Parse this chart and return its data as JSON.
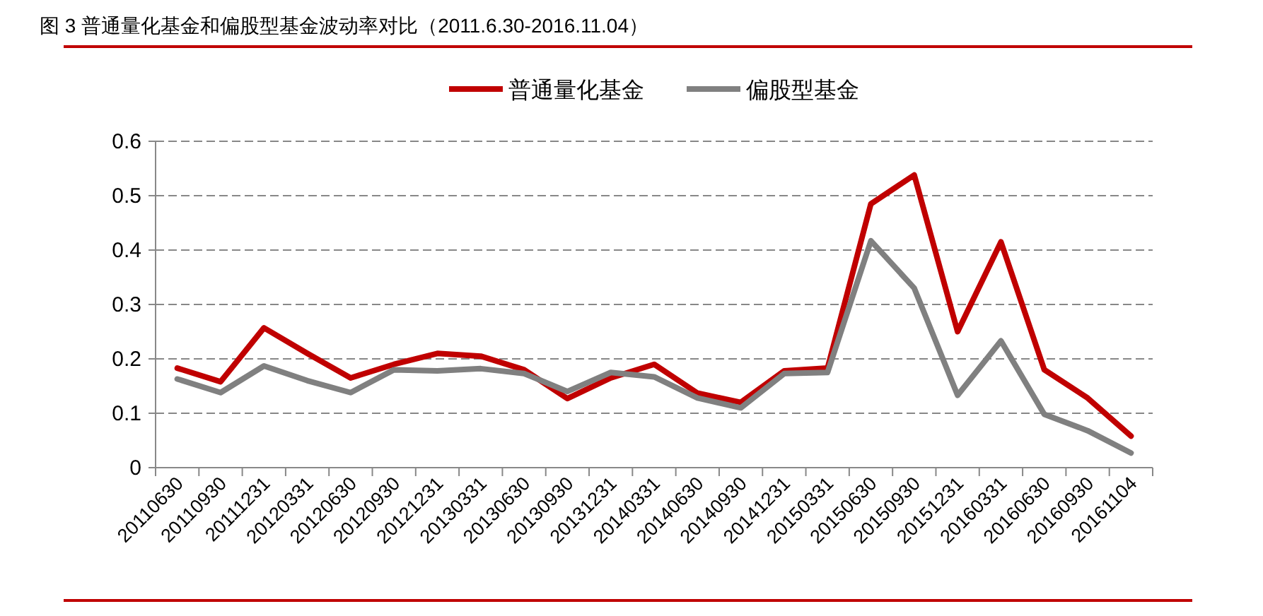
{
  "chart_data": {
    "type": "line",
    "title": "图 3 普通量化基金和偏股型基金波动率对比（2011.6.30-2016.11.04）",
    "categories": [
      "20110630",
      "20110930",
      "20111231",
      "20120331",
      "20120630",
      "20120930",
      "20121231",
      "20130331",
      "20130630",
      "20130930",
      "20131231",
      "20140331",
      "20140630",
      "20140930",
      "20141231",
      "20150331",
      "20150630",
      "20150930",
      "20151231",
      "20160331",
      "20160630",
      "20160930",
      "20161104"
    ],
    "series": [
      {
        "name": "普通量化基金",
        "color": "#c00000",
        "values": [
          0.183,
          0.158,
          0.257,
          0.21,
          0.165,
          0.19,
          0.21,
          0.205,
          0.18,
          0.127,
          0.165,
          0.19,
          0.137,
          0.12,
          0.178,
          0.183,
          0.485,
          0.538,
          0.25,
          0.415,
          0.18,
          0.128,
          0.058
        ]
      },
      {
        "name": "偏股型基金",
        "color": "#808080",
        "values": [
          0.163,
          0.138,
          0.187,
          0.16,
          0.138,
          0.18,
          0.178,
          0.182,
          0.173,
          0.14,
          0.175,
          0.167,
          0.128,
          0.11,
          0.173,
          0.175,
          0.417,
          0.33,
          0.133,
          0.233,
          0.098,
          0.068,
          0.027
        ]
      }
    ],
    "ylim": [
      0,
      0.6
    ],
    "yticks": [
      0,
      0.1,
      0.2,
      0.3,
      0.4,
      0.5,
      0.6
    ],
    "grid": "y",
    "legend": "top",
    "marker": "none",
    "line_style": "solid"
  }
}
